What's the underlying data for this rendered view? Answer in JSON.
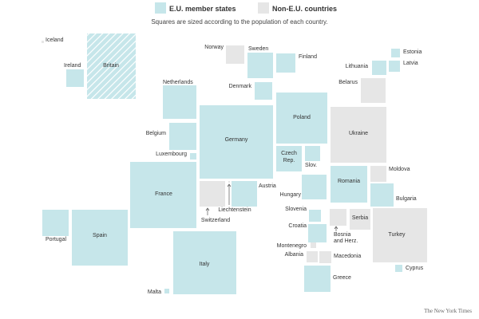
{
  "colors": {
    "eu": "#c6e6ea",
    "non_eu": "#e6e6e6",
    "hatch": "#a9d3da"
  },
  "legend": {
    "eu_label": "E.U. member states",
    "non_eu_label": "Non-E.U. countries",
    "subtitle": "Squares are sized according to the population of each country."
  },
  "credit": "The New York Times",
  "countries": [
    {
      "name": "Iceland",
      "group": "non"
    },
    {
      "name": "Ireland",
      "group": "eu"
    },
    {
      "name": "Britain",
      "group": "hatched"
    },
    {
      "name": "Norway",
      "group": "non"
    },
    {
      "name": "Sweden",
      "group": "eu"
    },
    {
      "name": "Finland",
      "group": "eu"
    },
    {
      "name": "Estonia",
      "group": "eu"
    },
    {
      "name": "Latvia",
      "group": "eu"
    },
    {
      "name": "Lithuania",
      "group": "eu"
    },
    {
      "name": "Denmark",
      "group": "eu"
    },
    {
      "name": "Belarus",
      "group": "non"
    },
    {
      "name": "Netherlands",
      "group": "eu"
    },
    {
      "name": "Belgium",
      "group": "eu"
    },
    {
      "name": "Luxembourg",
      "group": "eu"
    },
    {
      "name": "Germany",
      "group": "eu"
    },
    {
      "name": "Poland",
      "group": "eu"
    },
    {
      "name": "Ukraine",
      "group": "non"
    },
    {
      "name": "Czech Rep.",
      "group": "eu"
    },
    {
      "name": "Slov.",
      "group": "eu"
    },
    {
      "name": "France",
      "group": "eu"
    },
    {
      "name": "Switzerland",
      "group": "non"
    },
    {
      "name": "Liechtenstein",
      "group": "non"
    },
    {
      "name": "Austria",
      "group": "eu"
    },
    {
      "name": "Hungary",
      "group": "eu"
    },
    {
      "name": "Romania",
      "group": "eu"
    },
    {
      "name": "Moldova",
      "group": "non"
    },
    {
      "name": "Bulgaria",
      "group": "eu"
    },
    {
      "name": "Portugal",
      "group": "eu"
    },
    {
      "name": "Spain",
      "group": "eu"
    },
    {
      "name": "Slovenia",
      "group": "eu"
    },
    {
      "name": "Croatia",
      "group": "eu"
    },
    {
      "name": "Bosnia and Herz.",
      "group": "non"
    },
    {
      "name": "Serbia",
      "group": "non"
    },
    {
      "name": "Montenegro",
      "group": "non"
    },
    {
      "name": "Albania",
      "group": "non"
    },
    {
      "name": "Macedonia",
      "group": "non"
    },
    {
      "name": "Turkey",
      "group": "non"
    },
    {
      "name": "Italy",
      "group": "eu"
    },
    {
      "name": "Greece",
      "group": "eu"
    },
    {
      "name": "Cyprus",
      "group": "eu"
    },
    {
      "name": "Malta",
      "group": "eu"
    }
  ]
}
